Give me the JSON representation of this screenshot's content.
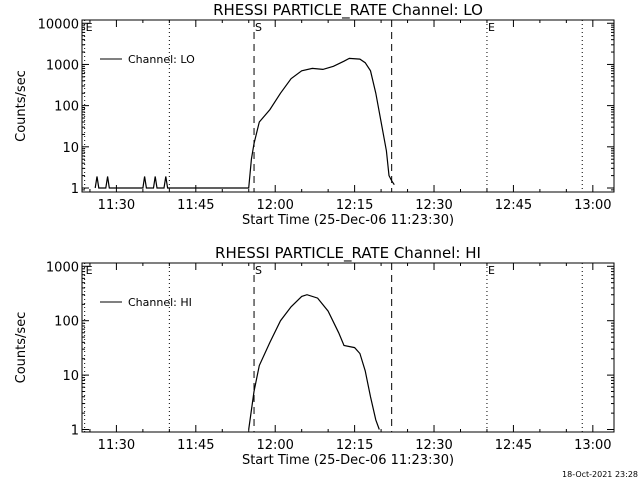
{
  "footer_date": "18-Oct-2021 23:28",
  "chart_data": [
    {
      "type": "line",
      "title": "RHESSI PARTICLE_RATE Channel: LO",
      "xlabel": "Start Time (25-Dec-06 11:23:30)",
      "ylabel": "Counts/sec",
      "y_scale": "log",
      "xlim": [
        "11:23:30",
        "13:04:00"
      ],
      "ylim": [
        0.8,
        12000
      ],
      "x_ticks": [
        "11:30",
        "11:45",
        "12:00",
        "12:15",
        "12:30",
        "12:45",
        "13:00"
      ],
      "y_ticks": [
        {
          "value": 1,
          "label": "1"
        },
        {
          "value": 10,
          "label": "10"
        },
        {
          "value": 100,
          "label": "100"
        },
        {
          "value": 1000,
          "label": "1000"
        },
        {
          "value": 10000,
          "label": "10000"
        }
      ],
      "markers": [
        {
          "time": "11:24:00",
          "label": "E",
          "style": "dotted"
        },
        {
          "time": "11:40:00",
          "label": "",
          "style": "dotted"
        },
        {
          "time": "11:56:00",
          "label": "S",
          "style": "dashed"
        },
        {
          "time": "12:22:00",
          "label": "",
          "style": "dashed"
        },
        {
          "time": "12:40:00",
          "label": "E",
          "style": "dotted"
        },
        {
          "time": "12:58:00",
          "label": "",
          "style": "dotted"
        }
      ],
      "series": [
        {
          "name": "Channel: LO",
          "points": [
            [
              "11:26:00",
              1
            ],
            [
              "11:26:20",
              1.9
            ],
            [
              "11:26:40",
              1
            ],
            [
              "11:28:00",
              1
            ],
            [
              "11:28:20",
              1.9
            ],
            [
              "11:28:40",
              1
            ],
            [
              "11:35:00",
              1
            ],
            [
              "11:35:20",
              1.9
            ],
            [
              "11:35:40",
              1
            ],
            [
              "11:37:00",
              1
            ],
            [
              "11:37:20",
              1.9
            ],
            [
              "11:37:40",
              1
            ],
            [
              "11:39:00",
              1
            ],
            [
              "11:39:20",
              1.9
            ],
            [
              "11:39:40",
              1
            ],
            [
              "11:55:00",
              1
            ],
            [
              "11:55:30",
              5
            ],
            [
              "11:56:00",
              12
            ],
            [
              "11:57:00",
              40
            ],
            [
              "11:59:00",
              80
            ],
            [
              "12:01:00",
              200
            ],
            [
              "12:03:00",
              450
            ],
            [
              "12:05:00",
              700
            ],
            [
              "12:07:00",
              800
            ],
            [
              "12:09:00",
              760
            ],
            [
              "12:11:00",
              900
            ],
            [
              "12:13:00",
              1200
            ],
            [
              "12:14:00",
              1400
            ],
            [
              "12:16:00",
              1350
            ],
            [
              "12:17:00",
              1100
            ],
            [
              "12:18:00",
              700
            ],
            [
              "12:19:00",
              200
            ],
            [
              "12:20:00",
              40
            ],
            [
              "12:21:00",
              8
            ],
            [
              "12:21:30",
              2
            ],
            [
              "12:22:00",
              1.5
            ],
            [
              "12:22:30",
              1.2
            ]
          ]
        }
      ]
    },
    {
      "type": "line",
      "title": "RHESSI PARTICLE_RATE Channel: HI",
      "xlabel": "Start Time (25-Dec-06 11:23:30)",
      "ylabel": "Counts/sec",
      "y_scale": "log",
      "xlim": [
        "11:23:30",
        "13:04:00"
      ],
      "ylim": [
        0.9,
        1150
      ],
      "x_ticks": [
        "11:30",
        "11:45",
        "12:00",
        "12:15",
        "12:30",
        "12:45",
        "13:00"
      ],
      "y_ticks": [
        {
          "value": 1,
          "label": "1"
        },
        {
          "value": 10,
          "label": "10"
        },
        {
          "value": 100,
          "label": "100"
        },
        {
          "value": 1000,
          "label": "1000"
        }
      ],
      "markers": [
        {
          "time": "11:24:00",
          "label": "E",
          "style": "dotted"
        },
        {
          "time": "11:40:00",
          "label": "",
          "style": "dotted"
        },
        {
          "time": "11:56:00",
          "label": "S",
          "style": "dashed"
        },
        {
          "time": "12:22:00",
          "label": "",
          "style": "dashed"
        },
        {
          "time": "12:40:00",
          "label": "E",
          "style": "dotted"
        },
        {
          "time": "12:58:00",
          "label": "",
          "style": "dotted"
        }
      ],
      "series": [
        {
          "name": "Channel: HI",
          "points": [
            [
              "11:55:00",
              1
            ],
            [
              "11:56:00",
              5
            ],
            [
              "11:57:00",
              15
            ],
            [
              "11:59:00",
              40
            ],
            [
              "12:01:00",
              100
            ],
            [
              "12:03:00",
              180
            ],
            [
              "12:05:00",
              280
            ],
            [
              "12:06:00",
              300
            ],
            [
              "12:08:00",
              260
            ],
            [
              "12:10:00",
              150
            ],
            [
              "12:12:00",
              60
            ],
            [
              "12:13:00",
              35
            ],
            [
              "12:15:00",
              32
            ],
            [
              "12:16:00",
              25
            ],
            [
              "12:17:00",
              12
            ],
            [
              "12:18:00",
              4
            ],
            [
              "12:19:00",
              1.5
            ],
            [
              "12:19:40",
              1
            ]
          ]
        }
      ]
    }
  ]
}
